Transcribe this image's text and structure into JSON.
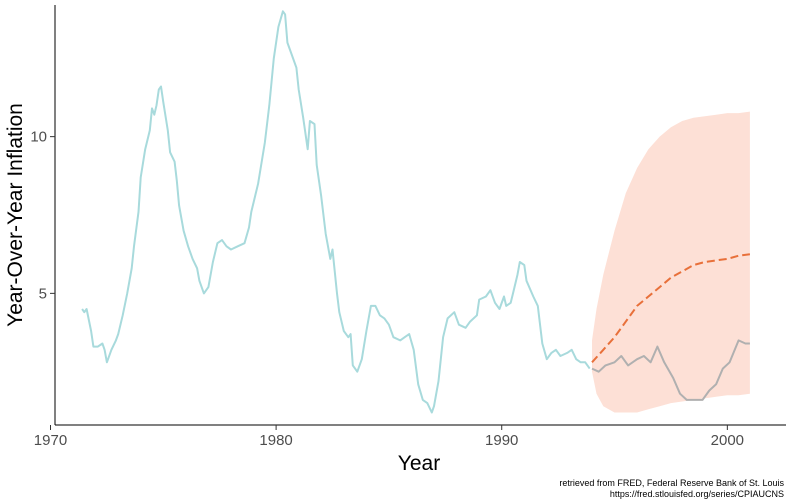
{
  "chart_data": {
    "type": "line",
    "xlabel": "Year",
    "ylabel": "Year-Over-Year Inflation",
    "xlim": [
      1970.2,
      2002.6
    ],
    "ylim": [
      0.8,
      14.2
    ],
    "x_ticks": [
      1970,
      1980,
      1990,
      2000
    ],
    "y_ticks": [
      5,
      10
    ],
    "grid": false,
    "legend": "none",
    "caption": [
      "retrieved from FRED, Federal Reserve Bank of St. Louis",
      "https://fred.stlouisfed.org/series/CPIAUCNS"
    ],
    "series": [
      {
        "role": "historical",
        "style": "solid",
        "color": "#a8dadc",
        "points": [
          [
            1971.4,
            4.5
          ],
          [
            1971.5,
            4.4
          ],
          [
            1971.6,
            4.5
          ],
          [
            1971.8,
            3.8
          ],
          [
            1971.9,
            3.3
          ],
          [
            1972.1,
            3.3
          ],
          [
            1972.3,
            3.4
          ],
          [
            1972.4,
            3.2
          ],
          [
            1972.5,
            2.8
          ],
          [
            1972.7,
            3.2
          ],
          [
            1972.9,
            3.5
          ],
          [
            1973.0,
            3.7
          ],
          [
            1973.2,
            4.3
          ],
          [
            1973.4,
            5.0
          ],
          [
            1973.6,
            5.8
          ],
          [
            1973.7,
            6.5
          ],
          [
            1973.9,
            7.6
          ],
          [
            1974.0,
            8.7
          ],
          [
            1974.2,
            9.6
          ],
          [
            1974.4,
            10.2
          ],
          [
            1974.5,
            10.9
          ],
          [
            1974.6,
            10.7
          ],
          [
            1974.7,
            11.0
          ],
          [
            1974.8,
            11.5
          ],
          [
            1974.9,
            11.6
          ],
          [
            1975.0,
            11.1
          ],
          [
            1975.2,
            10.2
          ],
          [
            1975.3,
            9.5
          ],
          [
            1975.5,
            9.2
          ],
          [
            1975.6,
            8.6
          ],
          [
            1975.7,
            7.8
          ],
          [
            1975.9,
            7.0
          ],
          [
            1976.1,
            6.5
          ],
          [
            1976.3,
            6.1
          ],
          [
            1976.5,
            5.8
          ],
          [
            1976.6,
            5.4
          ],
          [
            1976.8,
            5.0
          ],
          [
            1977.0,
            5.2
          ],
          [
            1977.2,
            6.0
          ],
          [
            1977.4,
            6.6
          ],
          [
            1977.6,
            6.7
          ],
          [
            1977.8,
            6.5
          ],
          [
            1978.0,
            6.4
          ],
          [
            1978.3,
            6.5
          ],
          [
            1978.6,
            6.6
          ],
          [
            1978.8,
            7.1
          ],
          [
            1978.9,
            7.6
          ],
          [
            1979.2,
            8.5
          ],
          [
            1979.5,
            9.8
          ],
          [
            1979.7,
            11.0
          ],
          [
            1979.9,
            12.5
          ],
          [
            1980.1,
            13.5
          ],
          [
            1980.3,
            14.0
          ],
          [
            1980.4,
            13.9
          ],
          [
            1980.5,
            13.0
          ],
          [
            1980.7,
            12.6
          ],
          [
            1980.9,
            12.2
          ],
          [
            1981.0,
            11.5
          ],
          [
            1981.2,
            10.6
          ],
          [
            1981.4,
            9.6
          ],
          [
            1981.5,
            10.5
          ],
          [
            1981.7,
            10.4
          ],
          [
            1981.8,
            9.1
          ],
          [
            1982.0,
            8.1
          ],
          [
            1982.2,
            6.9
          ],
          [
            1982.4,
            6.1
          ],
          [
            1982.5,
            6.4
          ],
          [
            1982.7,
            5.0
          ],
          [
            1982.8,
            4.4
          ],
          [
            1983.0,
            3.8
          ],
          [
            1983.2,
            3.6
          ],
          [
            1983.3,
            3.7
          ],
          [
            1983.4,
            2.7
          ],
          [
            1983.6,
            2.5
          ],
          [
            1983.8,
            2.9
          ],
          [
            1984.0,
            3.8
          ],
          [
            1984.2,
            4.6
          ],
          [
            1984.4,
            4.6
          ],
          [
            1984.6,
            4.3
          ],
          [
            1984.8,
            4.2
          ],
          [
            1985.0,
            4.0
          ],
          [
            1985.2,
            3.6
          ],
          [
            1985.5,
            3.5
          ],
          [
            1985.7,
            3.6
          ],
          [
            1985.9,
            3.7
          ],
          [
            1986.1,
            3.2
          ],
          [
            1986.3,
            2.1
          ],
          [
            1986.5,
            1.6
          ],
          [
            1986.7,
            1.5
          ],
          [
            1986.9,
            1.2
          ],
          [
            1987.0,
            1.4
          ],
          [
            1987.2,
            2.2
          ],
          [
            1987.4,
            3.6
          ],
          [
            1987.6,
            4.2
          ],
          [
            1987.9,
            4.4
          ],
          [
            1988.1,
            4.0
          ],
          [
            1988.4,
            3.9
          ],
          [
            1988.6,
            4.1
          ],
          [
            1988.9,
            4.3
          ],
          [
            1989.0,
            4.8
          ],
          [
            1989.3,
            4.9
          ],
          [
            1989.5,
            5.1
          ],
          [
            1989.7,
            4.7
          ],
          [
            1989.9,
            4.5
          ],
          [
            1990.1,
            4.9
          ],
          [
            1990.2,
            4.6
          ],
          [
            1990.4,
            4.7
          ],
          [
            1990.5,
            5.0
          ],
          [
            1990.7,
            5.6
          ],
          [
            1990.8,
            6.0
          ],
          [
            1991.0,
            5.9
          ],
          [
            1991.1,
            5.4
          ],
          [
            1991.4,
            4.9
          ],
          [
            1991.6,
            4.6
          ],
          [
            1991.8,
            3.4
          ],
          [
            1992.0,
            2.9
          ],
          [
            1992.2,
            3.1
          ],
          [
            1992.4,
            3.2
          ],
          [
            1992.6,
            3.0
          ],
          [
            1992.9,
            3.1
          ],
          [
            1993.1,
            3.2
          ],
          [
            1993.3,
            2.9
          ],
          [
            1993.5,
            2.8
          ],
          [
            1993.7,
            2.8
          ],
          [
            1993.9,
            2.6
          ]
        ]
      },
      {
        "role": "actual",
        "style": "solid",
        "color": "#b0b0b0",
        "points": [
          [
            1994.0,
            2.6
          ],
          [
            1994.3,
            2.5
          ],
          [
            1994.6,
            2.7
          ],
          [
            1995.0,
            2.8
          ],
          [
            1995.3,
            3.0
          ],
          [
            1995.6,
            2.7
          ],
          [
            1996.0,
            2.9
          ],
          [
            1996.3,
            3.0
          ],
          [
            1996.6,
            2.8
          ],
          [
            1996.9,
            3.3
          ],
          [
            1997.2,
            2.8
          ],
          [
            1997.6,
            2.3
          ],
          [
            1997.9,
            1.8
          ],
          [
            1998.2,
            1.6
          ],
          [
            1998.6,
            1.6
          ],
          [
            1998.9,
            1.6
          ],
          [
            1999.2,
            1.9
          ],
          [
            1999.5,
            2.1
          ],
          [
            1999.8,
            2.6
          ],
          [
            2000.1,
            2.8
          ],
          [
            2000.5,
            3.5
          ],
          [
            2000.8,
            3.4
          ],
          [
            2001.0,
            3.4
          ]
        ]
      },
      {
        "role": "forecast",
        "style": "dashed",
        "color": "#e8703a",
        "points": [
          [
            1994.0,
            2.8
          ],
          [
            1994.5,
            3.2
          ],
          [
            1995.0,
            3.6
          ],
          [
            1995.5,
            4.1
          ],
          [
            1996.0,
            4.6
          ],
          [
            1996.5,
            4.9
          ],
          [
            1997.0,
            5.2
          ],
          [
            1997.5,
            5.5
          ],
          [
            1998.0,
            5.7
          ],
          [
            1998.5,
            5.9
          ],
          [
            1999.0,
            6.0
          ],
          [
            1999.5,
            6.05
          ],
          [
            2000.0,
            6.1
          ],
          [
            2000.5,
            6.2
          ],
          [
            2001.0,
            6.25
          ]
        ]
      }
    ],
    "band": {
      "role": "forecast-interval",
      "color": "#fde0d6",
      "points": [
        [
          1994.0,
          2.5,
          3.5
        ],
        [
          1994.2,
          1.8,
          4.5
        ],
        [
          1994.5,
          1.4,
          5.6
        ],
        [
          1995.0,
          1.2,
          7.0
        ],
        [
          1995.5,
          1.2,
          8.2
        ],
        [
          1996.0,
          1.2,
          9.0
        ],
        [
          1996.5,
          1.3,
          9.6
        ],
        [
          1997.0,
          1.4,
          10.0
        ],
        [
          1997.5,
          1.5,
          10.3
        ],
        [
          1998.0,
          1.55,
          10.5
        ],
        [
          1998.5,
          1.6,
          10.6
        ],
        [
          1999.0,
          1.65,
          10.65
        ],
        [
          1999.5,
          1.7,
          10.7
        ],
        [
          2000.0,
          1.75,
          10.75
        ],
        [
          2000.5,
          1.75,
          10.75
        ],
        [
          2001.0,
          1.8,
          10.8
        ]
      ]
    }
  }
}
